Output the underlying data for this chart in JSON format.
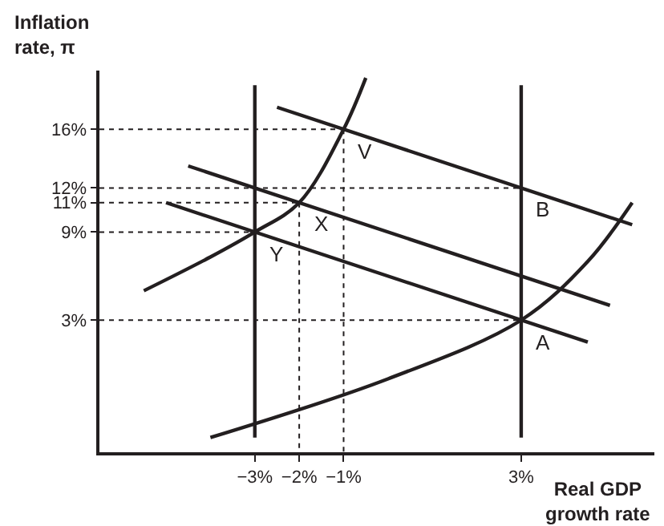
{
  "chart_data": {
    "type": "line",
    "xlabel": "Real GDP\ngrowth rate",
    "ylabel": "Inflation\nrate, π",
    "xlim": [
      -6.5,
      6
    ],
    "ylim": [
      -6,
      20
    ],
    "xticks": [
      {
        "value": -3,
        "label": "−3%"
      },
      {
        "value": -2,
        "label": "−2%"
      },
      {
        "value": -1,
        "label": "−1%"
      },
      {
        "value": 3,
        "label": "3%"
      }
    ],
    "yticks": [
      {
        "value": 3,
        "label": "3%"
      },
      {
        "value": 9,
        "label": "9%"
      },
      {
        "value": 11,
        "label": "11%"
      },
      {
        "value": 12,
        "label": "12%"
      },
      {
        "value": 16,
        "label": "16%"
      }
    ],
    "marker": "none",
    "line_style": "solid",
    "series": [
      {
        "color": "#231f20",
        "x": [
          -3,
          -3
        ],
        "values": [
          -5,
          19
        ]
      },
      {
        "color": "#231f20",
        "x": [
          3,
          3
        ],
        "values": [
          -5,
          19
        ]
      },
      {
        "color": "#231f20",
        "x": [
          -5.5,
          -4,
          -3,
          -2,
          -1,
          -0.5
        ],
        "values": [
          5,
          7.3,
          9,
          11,
          16,
          19.5
        ]
      },
      {
        "color": "#231f20",
        "x": [
          -4,
          0,
          3,
          4.5,
          5.5
        ],
        "values": [
          -5,
          -1,
          3,
          7,
          11
        ]
      },
      {
        "color": "#231f20",
        "x": [
          -2.5,
          5.5
        ],
        "values": [
          17.5,
          9.5
        ]
      },
      {
        "color": "#231f20",
        "x": [
          -4.5,
          5
        ],
        "values": [
          13.5,
          4
        ]
      },
      {
        "color": "#231f20",
        "x": [
          -5,
          4.5
        ],
        "values": [
          11,
          1.5
        ]
      },
      {
        "color": "#231f20",
        "line_style": "dotted",
        "x": [
          -6.5,
          -1
        ],
        "values": [
          16,
          16
        ]
      },
      {
        "color": "#231f20",
        "line_style": "dotted",
        "x": [
          -6.5,
          3
        ],
        "values": [
          12,
          12
        ]
      },
      {
        "color": "#231f20",
        "line_style": "dotted",
        "x": [
          -6.5,
          -2
        ],
        "values": [
          11,
          11
        ]
      },
      {
        "color": "#231f20",
        "line_style": "dotted",
        "x": [
          -6.5,
          -3
        ],
        "values": [
          9,
          9
        ]
      },
      {
        "color": "#231f20",
        "line_style": "dotted",
        "x": [
          -6.5,
          3
        ],
        "values": [
          3,
          3
        ]
      },
      {
        "color": "#231f20",
        "line_style": "dotted",
        "x": [
          -2,
          -2
        ],
        "values": [
          11,
          -6
        ]
      },
      {
        "color": "#231f20",
        "line_style": "dotted",
        "x": [
          -1,
          -1
        ],
        "values": [
          16,
          -6
        ]
      }
    ],
    "annotations": [
      {
        "text": "V",
        "x": -1,
        "y": 16
      },
      {
        "text": "B",
        "x": 3,
        "y": 12
      },
      {
        "text": "X",
        "x": -2,
        "y": 11
      },
      {
        "text": "Y",
        "x": -3,
        "y": 9
      },
      {
        "text": "A",
        "x": 3,
        "y": 3
      }
    ]
  }
}
